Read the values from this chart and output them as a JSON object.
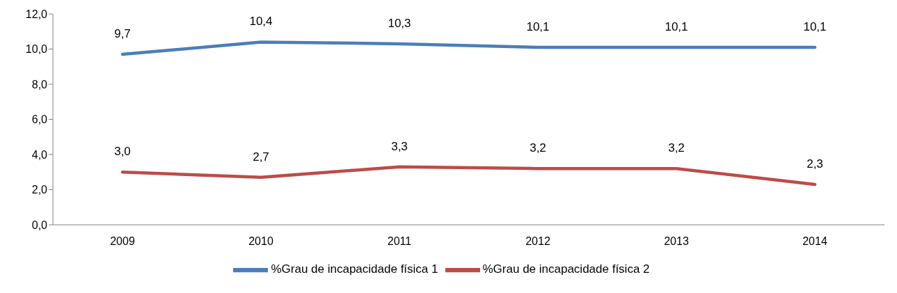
{
  "chart_data": {
    "type": "line",
    "categories": [
      "2009",
      "2010",
      "2011",
      "2012",
      "2013",
      "2014"
    ],
    "series": [
      {
        "name": "%Grau de incapacidade física 1",
        "color": "#4a7ebb",
        "values": [
          9.7,
          10.4,
          10.3,
          10.1,
          10.1,
          10.1
        ],
        "value_labels": [
          "9,7",
          "10,4",
          "10,3",
          "10,1",
          "10,1",
          "10,1"
        ]
      },
      {
        "name": "%Grau de incapacidade física 2",
        "color": "#be4b48",
        "values": [
          3.0,
          2.7,
          3.3,
          3.2,
          3.2,
          2.3
        ],
        "value_labels": [
          "3,0",
          "2,7",
          "3,3",
          "3,2",
          "3,2",
          "2,3"
        ]
      }
    ],
    "ylim": [
      0,
      12
    ],
    "yticks": [
      {
        "value": 0,
        "label": "0,0"
      },
      {
        "value": 2,
        "label": "2,0"
      },
      {
        "value": 4,
        "label": "4,0"
      },
      {
        "value": 6,
        "label": "6,0"
      },
      {
        "value": 8,
        "label": "8,0"
      },
      {
        "value": 10,
        "label": "10,0"
      },
      {
        "value": 12,
        "label": "12,0"
      }
    ],
    "grid": false,
    "legend": "bottom",
    "marker": "none",
    "line_style": "solid"
  }
}
